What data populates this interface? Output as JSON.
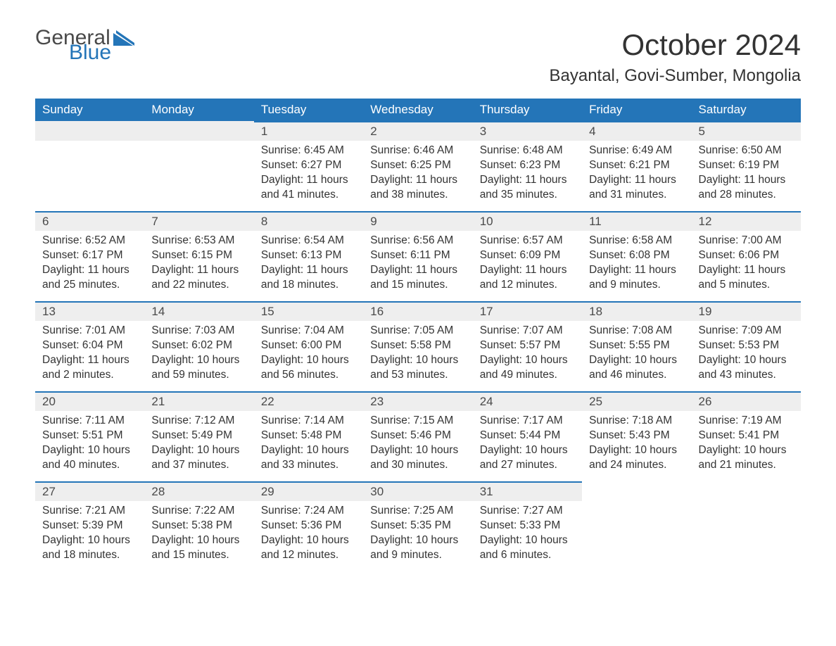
{
  "logo": {
    "word1": "General",
    "word2": "Blue",
    "icon_color": "#2475b8"
  },
  "title": "October 2024",
  "location": "Bayantal, Govi-Sumber, Mongolia",
  "colors": {
    "header_bg": "#2475b8",
    "header_text": "#ffffff",
    "daynum_bg": "#eeeeee",
    "daynum_border": "#2475b8",
    "text": "#333333",
    "background": "#ffffff"
  },
  "typography": {
    "title_fontsize": 42,
    "location_fontsize": 24,
    "header_fontsize": 17,
    "daynum_fontsize": 17,
    "body_fontsize": 15.5,
    "font_family": "Arial"
  },
  "layout": {
    "columns": 7,
    "rows": 5,
    "first_blank_cells": 2
  },
  "weekdays": [
    "Sunday",
    "Monday",
    "Tuesday",
    "Wednesday",
    "Thursday",
    "Friday",
    "Saturday"
  ],
  "days": [
    {
      "n": 1,
      "sunrise": "6:45 AM",
      "sunset": "6:27 PM",
      "daylight": "11 hours and 41 minutes."
    },
    {
      "n": 2,
      "sunrise": "6:46 AM",
      "sunset": "6:25 PM",
      "daylight": "11 hours and 38 minutes."
    },
    {
      "n": 3,
      "sunrise": "6:48 AM",
      "sunset": "6:23 PM",
      "daylight": "11 hours and 35 minutes."
    },
    {
      "n": 4,
      "sunrise": "6:49 AM",
      "sunset": "6:21 PM",
      "daylight": "11 hours and 31 minutes."
    },
    {
      "n": 5,
      "sunrise": "6:50 AM",
      "sunset": "6:19 PM",
      "daylight": "11 hours and 28 minutes."
    },
    {
      "n": 6,
      "sunrise": "6:52 AM",
      "sunset": "6:17 PM",
      "daylight": "11 hours and 25 minutes."
    },
    {
      "n": 7,
      "sunrise": "6:53 AM",
      "sunset": "6:15 PM",
      "daylight": "11 hours and 22 minutes."
    },
    {
      "n": 8,
      "sunrise": "6:54 AM",
      "sunset": "6:13 PM",
      "daylight": "11 hours and 18 minutes."
    },
    {
      "n": 9,
      "sunrise": "6:56 AM",
      "sunset": "6:11 PM",
      "daylight": "11 hours and 15 minutes."
    },
    {
      "n": 10,
      "sunrise": "6:57 AM",
      "sunset": "6:09 PM",
      "daylight": "11 hours and 12 minutes."
    },
    {
      "n": 11,
      "sunrise": "6:58 AM",
      "sunset": "6:08 PM",
      "daylight": "11 hours and 9 minutes."
    },
    {
      "n": 12,
      "sunrise": "7:00 AM",
      "sunset": "6:06 PM",
      "daylight": "11 hours and 5 minutes."
    },
    {
      "n": 13,
      "sunrise": "7:01 AM",
      "sunset": "6:04 PM",
      "daylight": "11 hours and 2 minutes."
    },
    {
      "n": 14,
      "sunrise": "7:03 AM",
      "sunset": "6:02 PM",
      "daylight": "10 hours and 59 minutes."
    },
    {
      "n": 15,
      "sunrise": "7:04 AM",
      "sunset": "6:00 PM",
      "daylight": "10 hours and 56 minutes."
    },
    {
      "n": 16,
      "sunrise": "7:05 AM",
      "sunset": "5:58 PM",
      "daylight": "10 hours and 53 minutes."
    },
    {
      "n": 17,
      "sunrise": "7:07 AM",
      "sunset": "5:57 PM",
      "daylight": "10 hours and 49 minutes."
    },
    {
      "n": 18,
      "sunrise": "7:08 AM",
      "sunset": "5:55 PM",
      "daylight": "10 hours and 46 minutes."
    },
    {
      "n": 19,
      "sunrise": "7:09 AM",
      "sunset": "5:53 PM",
      "daylight": "10 hours and 43 minutes."
    },
    {
      "n": 20,
      "sunrise": "7:11 AM",
      "sunset": "5:51 PM",
      "daylight": "10 hours and 40 minutes."
    },
    {
      "n": 21,
      "sunrise": "7:12 AM",
      "sunset": "5:49 PM",
      "daylight": "10 hours and 37 minutes."
    },
    {
      "n": 22,
      "sunrise": "7:14 AM",
      "sunset": "5:48 PM",
      "daylight": "10 hours and 33 minutes."
    },
    {
      "n": 23,
      "sunrise": "7:15 AM",
      "sunset": "5:46 PM",
      "daylight": "10 hours and 30 minutes."
    },
    {
      "n": 24,
      "sunrise": "7:17 AM",
      "sunset": "5:44 PM",
      "daylight": "10 hours and 27 minutes."
    },
    {
      "n": 25,
      "sunrise": "7:18 AM",
      "sunset": "5:43 PM",
      "daylight": "10 hours and 24 minutes."
    },
    {
      "n": 26,
      "sunrise": "7:19 AM",
      "sunset": "5:41 PM",
      "daylight": "10 hours and 21 minutes."
    },
    {
      "n": 27,
      "sunrise": "7:21 AM",
      "sunset": "5:39 PM",
      "daylight": "10 hours and 18 minutes."
    },
    {
      "n": 28,
      "sunrise": "7:22 AM",
      "sunset": "5:38 PM",
      "daylight": "10 hours and 15 minutes."
    },
    {
      "n": 29,
      "sunrise": "7:24 AM",
      "sunset": "5:36 PM",
      "daylight": "10 hours and 12 minutes."
    },
    {
      "n": 30,
      "sunrise": "7:25 AM",
      "sunset": "5:35 PM",
      "daylight": "10 hours and 9 minutes."
    },
    {
      "n": 31,
      "sunrise": "7:27 AM",
      "sunset": "5:33 PM",
      "daylight": "10 hours and 6 minutes."
    }
  ],
  "labels": {
    "sunrise": "Sunrise:",
    "sunset": "Sunset:",
    "daylight": "Daylight:"
  }
}
